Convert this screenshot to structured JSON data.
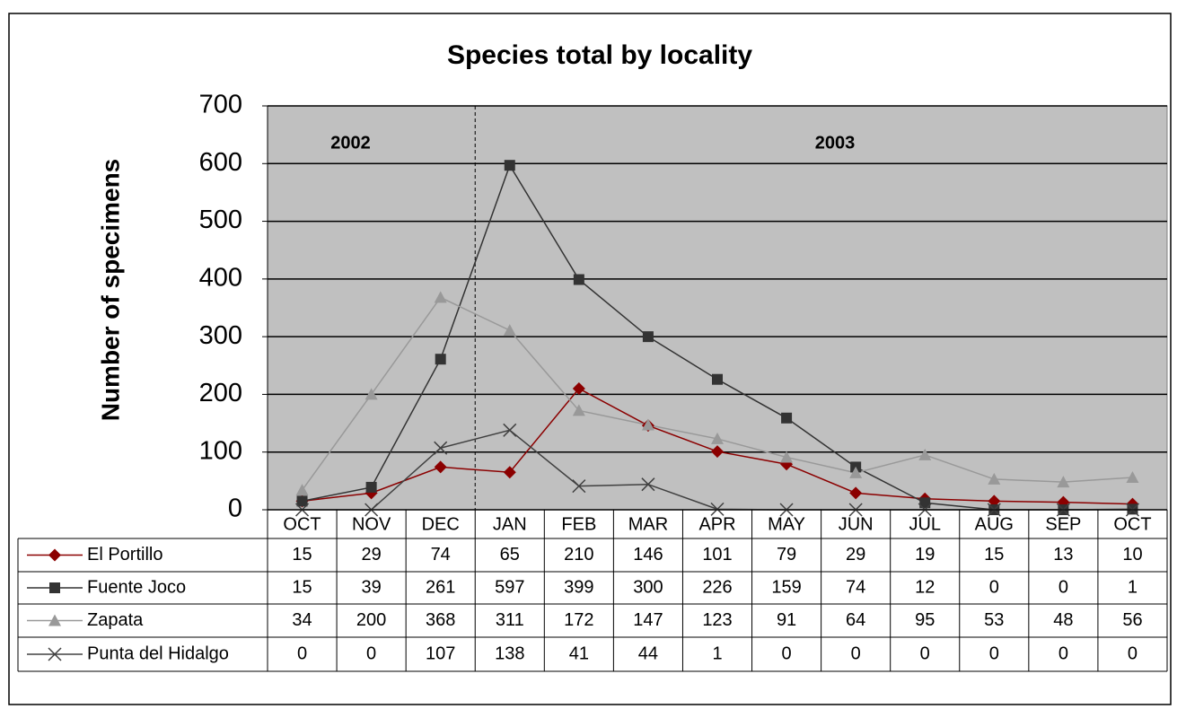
{
  "chart_data": {
    "type": "line",
    "title": "Species total by locality",
    "y_label": "Number of specimens",
    "categories": [
      "OCT",
      "NOV",
      "DEC",
      "JAN",
      "FEB",
      "MAR",
      "APR",
      "MAY",
      "JUN",
      "JUL",
      "AUG",
      "SEP",
      "OCT"
    ],
    "series": [
      {
        "name": "El Portillo",
        "color": "#8b0000",
        "marker": "diamond",
        "values": [
          15,
          29,
          74,
          65,
          210,
          146,
          101,
          79,
          29,
          19,
          15,
          13,
          10
        ]
      },
      {
        "name": "Fuente Joco",
        "color": "#333333",
        "marker": "square",
        "values": [
          15,
          39,
          261,
          597,
          399,
          300,
          226,
          159,
          74,
          12,
          0,
          0,
          1
        ]
      },
      {
        "name": "Zapata",
        "color": "#999999",
        "marker": "triangle",
        "values": [
          34,
          200,
          368,
          311,
          172,
          147,
          123,
          91,
          64,
          95,
          53,
          48,
          56
        ]
      },
      {
        "name": "Punta del Hidalgo",
        "color": "#404040",
        "marker": "x",
        "values": [
          0,
          0,
          107,
          138,
          41,
          44,
          1,
          0,
          0,
          0,
          0,
          0,
          0
        ]
      }
    ],
    "annotations": [
      "2002",
      "2003"
    ],
    "ylim": [
      0,
      700
    ],
    "yticks": [
      0,
      100,
      200,
      300,
      400,
      500,
      600,
      700
    ],
    "grid": true,
    "data_table": true
  }
}
